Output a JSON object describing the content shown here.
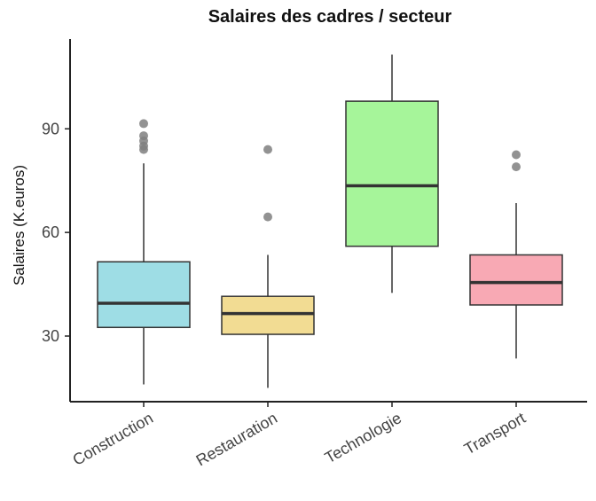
{
  "chart_data": {
    "type": "boxplot",
    "title": "Salaires des cadres / secteur",
    "xlabel": "",
    "ylabel": "Salaires (K.euros)",
    "ylim": [
      11,
      116
    ],
    "yticks": [
      30,
      60,
      90
    ],
    "grid": false,
    "legend": "none",
    "categories": [
      "Construction",
      "Restauration",
      "Technologie",
      "Transport"
    ],
    "boxes": [
      {
        "category": "Construction",
        "whisker_low": 16,
        "q1": 32.5,
        "median": 39.5,
        "q3": 51.5,
        "whisker_high": 80,
        "outliers": [
          84,
          85,
          86.5,
          88,
          91.5
        ],
        "color": "#9EDDE5"
      },
      {
        "category": "Restauration",
        "whisker_low": 15,
        "q1": 30.5,
        "median": 36.5,
        "q3": 41.5,
        "whisker_high": 53.5,
        "outliers": [
          64.5,
          84
        ],
        "color": "#F2DC93"
      },
      {
        "category": "Technologie",
        "whisker_low": 42.5,
        "q1": 56,
        "median": 73.5,
        "q3": 98,
        "whisker_high": 111.5,
        "outliers": [],
        "color": "#A6F59A"
      },
      {
        "category": "Transport",
        "whisker_low": 23.5,
        "q1": 39,
        "median": 45.5,
        "q3": 53.5,
        "whisker_high": 68.5,
        "outliers": [
          79,
          82.5
        ],
        "color": "#F8A9B4"
      }
    ]
  }
}
